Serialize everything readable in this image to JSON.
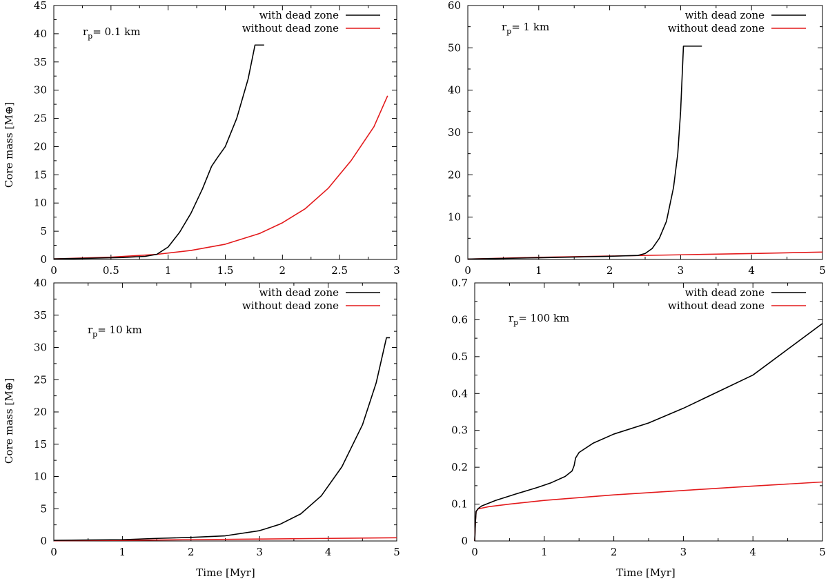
{
  "colors": {
    "with": "#000000",
    "without": "#e31a1c"
  },
  "chart_data": [
    {
      "type": "line",
      "panel": "top-left",
      "annotation": {
        "r": "r",
        "sub": "p",
        "rest": "= 0.1 km"
      },
      "xlabel": "",
      "ylabel": "Core mass [M⊕]",
      "xlim": [
        0,
        3
      ],
      "ylim": [
        0,
        45
      ],
      "xticks": [
        0,
        0.5,
        1,
        1.5,
        2,
        2.5,
        3
      ],
      "xtick_labels": [
        "0",
        "0.5",
        "1",
        "1.5",
        "2",
        "2.5",
        "3"
      ],
      "yticks": [
        0,
        5,
        10,
        15,
        20,
        25,
        30,
        35,
        40,
        45
      ],
      "ytick_labels": [
        "0",
        "5",
        "10",
        "15",
        "20",
        "25",
        "30",
        "35",
        "40",
        "45"
      ],
      "legend": [
        "with dead zone",
        "without dead zone"
      ],
      "series": [
        {
          "name": "with dead zone",
          "x": [
            0,
            0.3,
            0.6,
            0.8,
            0.9,
            1.0,
            1.1,
            1.2,
            1.3,
            1.38,
            1.43,
            1.5,
            1.6,
            1.7,
            1.76,
            1.76,
            1.84
          ],
          "y": [
            0.1,
            0.2,
            0.35,
            0.55,
            0.9,
            2.2,
            4.8,
            8.2,
            12.5,
            16.5,
            18.0,
            20.0,
            25.0,
            32.0,
            38.0,
            38.0,
            38.0
          ]
        },
        {
          "name": "without dead zone",
          "x": [
            0,
            0.5,
            0.9,
            1.2,
            1.5,
            1.8,
            2.0,
            2.2,
            2.4,
            2.6,
            2.8,
            2.92
          ],
          "y": [
            0.1,
            0.4,
            0.9,
            1.6,
            2.7,
            4.6,
            6.5,
            9.0,
            12.6,
            17.5,
            23.5,
            29.0
          ]
        }
      ]
    },
    {
      "type": "line",
      "panel": "top-right",
      "annotation": {
        "r": "r",
        "sub": "p",
        "rest": "= 1 km"
      },
      "xlabel": "",
      "ylabel": "",
      "xlim": [
        0,
        5
      ],
      "ylim": [
        0,
        60
      ],
      "xticks": [
        0,
        1,
        2,
        3,
        4,
        5
      ],
      "xtick_labels": [
        "0",
        "1",
        "2",
        "3",
        "4",
        "5"
      ],
      "yticks": [
        0,
        10,
        20,
        30,
        40,
        50,
        60
      ],
      "ytick_labels": [
        "0",
        "10",
        "20",
        "30",
        "40",
        "50",
        "60"
      ],
      "legend": [
        "with dead zone",
        "without dead zone"
      ],
      "series": [
        {
          "name": "with dead zone",
          "x": [
            0,
            1,
            2,
            2.4,
            2.5,
            2.6,
            2.7,
            2.8,
            2.9,
            2.96,
            3.0,
            3.04,
            3.06,
            3.3
          ],
          "y": [
            0.1,
            0.4,
            0.75,
            0.95,
            1.4,
            2.6,
            5.0,
            9.0,
            17.0,
            25.0,
            35.0,
            50.4,
            50.4,
            50.4
          ]
        },
        {
          "name": "without dead zone",
          "x": [
            0,
            1,
            2,
            3,
            4,
            5
          ],
          "y": [
            0.1,
            0.5,
            0.8,
            1.1,
            1.4,
            1.75
          ]
        }
      ]
    },
    {
      "type": "line",
      "panel": "bottom-left",
      "annotation": {
        "r": "r",
        "sub": "p",
        "rest": "= 10 km"
      },
      "xlabel": "Time [Myr]",
      "ylabel": "Core mass [M⊕]",
      "xlim": [
        0,
        5
      ],
      "ylim": [
        0,
        40
      ],
      "xticks": [
        0,
        1,
        2,
        3,
        4,
        5
      ],
      "xtick_labels": [
        "0",
        "1",
        "2",
        "3",
        "4",
        "5"
      ],
      "yticks": [
        0,
        5,
        10,
        15,
        20,
        25,
        30,
        35,
        40
      ],
      "ytick_labels": [
        "0",
        "5",
        "10",
        "15",
        "20",
        "25",
        "30",
        "35",
        "40"
      ],
      "legend": [
        "with dead zone",
        "without dead zone"
      ],
      "series": [
        {
          "name": "with dead zone",
          "x": [
            0,
            1,
            1.5,
            2,
            2.5,
            3,
            3.3,
            3.6,
            3.9,
            4.2,
            4.5,
            4.7,
            4.85,
            4.88,
            4.9
          ],
          "y": [
            0.1,
            0.2,
            0.4,
            0.55,
            0.8,
            1.6,
            2.6,
            4.2,
            7.0,
            11.5,
            18.0,
            24.5,
            31.5,
            31.5,
            31.5
          ]
        },
        {
          "name": "without dead zone",
          "x": [
            0,
            1,
            2,
            3,
            4,
            5
          ],
          "y": [
            0.05,
            0.1,
            0.2,
            0.3,
            0.4,
            0.5
          ]
        }
      ]
    },
    {
      "type": "line",
      "panel": "bottom-right",
      "annotation": {
        "r": "r",
        "sub": "p",
        "rest": "= 100 km"
      },
      "xlabel": "Time [Myr]",
      "ylabel": "",
      "xlim": [
        0,
        5
      ],
      "ylim": [
        0,
        0.7
      ],
      "xticks": [
        0,
        1,
        2,
        3,
        4,
        5
      ],
      "xtick_labels": [
        "0",
        "1",
        "2",
        "3",
        "4",
        "5"
      ],
      "yticks": [
        0,
        0.1,
        0.2,
        0.3,
        0.4,
        0.5,
        0.6,
        0.7
      ],
      "ytick_labels": [
        "0",
        "0.1",
        "0.2",
        "0.3",
        "0.4",
        "0.5",
        "0.6",
        "0.7"
      ],
      "legend": [
        "with dead zone",
        "without dead zone"
      ],
      "series": [
        {
          "name": "with dead zone",
          "x": [
            0,
            0.01,
            0.02,
            0.05,
            0.1,
            0.3,
            0.6,
            0.9,
            1.1,
            1.3,
            1.4,
            1.43,
            1.45,
            1.5,
            1.7,
            2.0,
            2.5,
            3.0,
            3.5,
            4.0,
            4.5,
            5.0
          ],
          "y": [
            0,
            0.05,
            0.08,
            0.088,
            0.095,
            0.11,
            0.128,
            0.145,
            0.158,
            0.175,
            0.19,
            0.205,
            0.225,
            0.24,
            0.265,
            0.29,
            0.32,
            0.36,
            0.405,
            0.45,
            0.52,
            0.59
          ]
        },
        {
          "name": "without dead zone",
          "x": [
            0,
            0.01,
            0.02,
            0.05,
            0.2,
            0.5,
            1,
            2,
            3,
            4,
            5
          ],
          "y": [
            0,
            0.05,
            0.08,
            0.087,
            0.093,
            0.1,
            0.11,
            0.125,
            0.137,
            0.149,
            0.16
          ]
        }
      ]
    }
  ]
}
